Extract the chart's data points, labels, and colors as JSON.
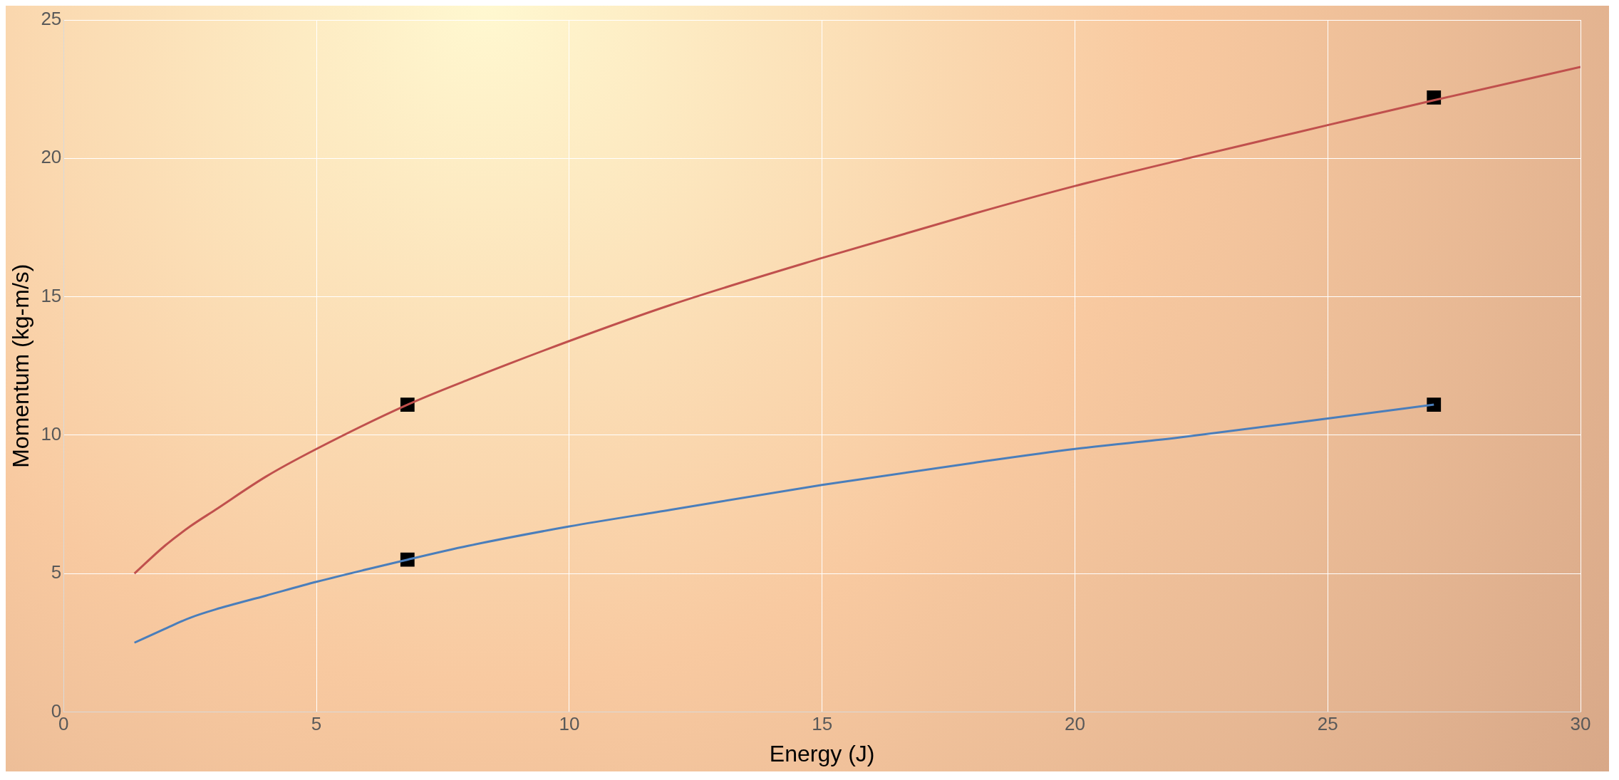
{
  "chart_data": {
    "type": "line",
    "xlabel": "Energy (J)",
    "ylabel": "Momentum (kg-m/s)",
    "xlim": [
      0,
      30
    ],
    "xticks": [
      0,
      5,
      10,
      15,
      20,
      25,
      30
    ],
    "ylim": [
      0,
      25
    ],
    "yticks": [
      0,
      5,
      10,
      15,
      20,
      25
    ],
    "grid": true,
    "legend": false,
    "line_style": "solid",
    "series": [
      {
        "color": "#c0504d",
        "marker": "none",
        "x": [
          1.4,
          2,
          2.5,
          3,
          4,
          5,
          6.8,
          8,
          10,
          12,
          15,
          18,
          20,
          22,
          25,
          27.1,
          30
        ],
        "values": [
          5.0,
          6.0,
          6.7,
          7.3,
          8.5,
          9.5,
          11.1,
          12.0,
          13.4,
          14.7,
          16.4,
          18.0,
          19.0,
          19.9,
          21.2,
          22.1,
          23.3
        ]
      },
      {
        "color": "#4a7ebb",
        "marker": "none",
        "x": [
          1.4,
          2,
          2.5,
          3,
          4,
          5,
          6.8,
          8,
          10,
          12,
          15,
          18,
          20,
          22,
          25,
          27.1
        ],
        "values": [
          2.5,
          3.0,
          3.4,
          3.7,
          4.2,
          4.7,
          5.5,
          6.0,
          6.7,
          7.3,
          8.2,
          9.0,
          9.5,
          9.9,
          10.6,
          11.1
        ]
      },
      {
        "type": "scatter",
        "color": "#000000",
        "marker": "square",
        "x": [
          6.8,
          27.1
        ],
        "values": [
          11.1,
          22.2
        ]
      },
      {
        "type": "scatter",
        "color": "#000000",
        "marker": "square",
        "x": [
          6.8,
          27.1
        ],
        "values": [
          5.5,
          11.1
        ]
      }
    ]
  }
}
